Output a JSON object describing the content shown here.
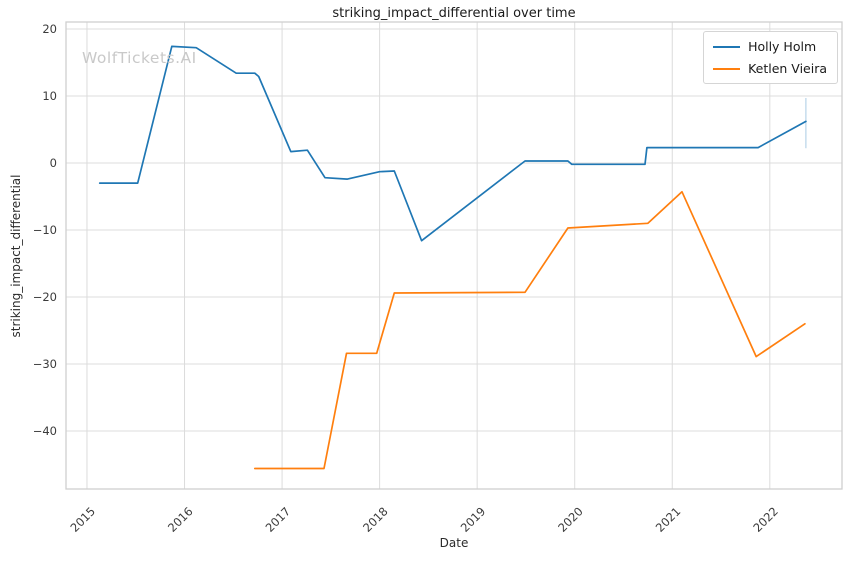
{
  "watermark": "WolfTickets.AI",
  "chart_data": {
    "type": "line",
    "title": "striking_impact_differential over time",
    "xlabel": "Date",
    "ylabel": "striking_impact_differential",
    "grid": true,
    "legend_position": "upper right",
    "x_ticks": [
      2015,
      2016,
      2017,
      2018,
      2019,
      2020,
      2021,
      2022
    ],
    "y_ticks": [
      20,
      10,
      0,
      -10,
      -20,
      -30,
      -40
    ],
    "xlim": [
      2014.785,
      2022.74
    ],
    "ylim": [
      -48.66,
      21.04
    ],
    "series": [
      {
        "name": "Holly Holm",
        "color": "#1f77b4",
        "x": [
          2015.13,
          2015.52,
          2015.87,
          2016.12,
          2016.53,
          2016.72,
          2016.76,
          2017.09,
          2017.26,
          2017.44,
          2017.67,
          2018.0,
          2018.15,
          2018.43,
          2019.49,
          2019.93,
          2019.97,
          2020.72,
          2020.74,
          2021.88,
          2022.37
        ],
        "y": [
          -3.0,
          -3.0,
          17.4,
          17.2,
          13.4,
          13.4,
          12.9,
          1.7,
          1.9,
          -2.2,
          -2.4,
          -1.3,
          -1.2,
          -11.6,
          0.3,
          0.3,
          -0.2,
          -0.2,
          2.3,
          2.3,
          6.2
        ]
      },
      {
        "name": "Ketlen Vieira",
        "color": "#ff7f0e",
        "x": [
          2016.72,
          2017.43,
          2017.66,
          2017.97,
          2018.15,
          2019.49,
          2019.93,
          2020.75,
          2021.1,
          2021.86,
          2022.36
        ],
        "y": [
          -45.6,
          -45.6,
          -28.4,
          -28.4,
          -19.4,
          -19.3,
          -9.7,
          -9.0,
          -4.3,
          -28.9,
          -24.0
        ]
      }
    ],
    "annotations": [
      {
        "type": "vline-segment",
        "x": 2022.37,
        "y_from": 2.2,
        "y_to": 9.7,
        "color": "#aacbe4"
      }
    ]
  }
}
